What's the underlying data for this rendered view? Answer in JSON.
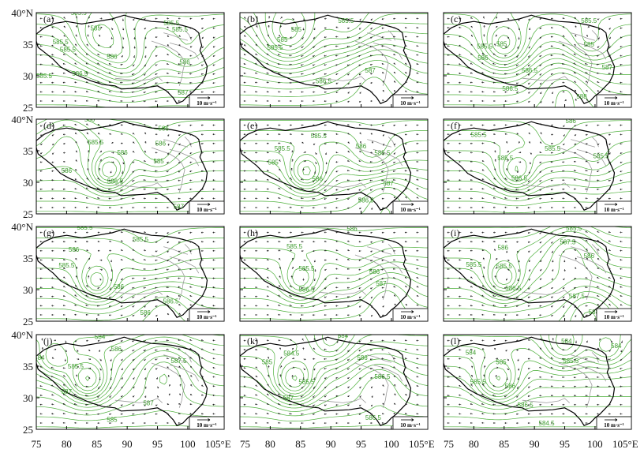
{
  "chart_data": {
    "type": "contour-vector-panel-grid",
    "rows": 4,
    "cols": 3,
    "x_ticks": [
      "75",
      "80",
      "85",
      "90",
      "95",
      "100",
      "105°E"
    ],
    "y_ticks": [
      "40°N",
      "35",
      "30",
      "25"
    ],
    "x_values": [
      75,
      80,
      85,
      90,
      95,
      100,
      105
    ],
    "y_values": [
      40,
      35,
      30,
      25
    ],
    "xlim": [
      75,
      106
    ],
    "ylim": [
      25,
      40
    ],
    "reference_vector": "10 m·s⁻¹",
    "colors": {
      "contour": "#4caf3a",
      "contour_label": "#3a9a2a",
      "plateau_border": "#000000",
      "river": "#9a9a9a",
      "vector": "#222222"
    },
    "panels": [
      {
        "label": "(a)",
        "contour_labels": [
          {
            "text": "585.5",
            "lon": 82.0,
            "lat": 39.6
          },
          {
            "text": "585",
            "lon": 84.8,
            "lat": 37.2
          },
          {
            "text": "585.5",
            "lon": 97.3,
            "lat": 38.0
          },
          {
            "text": "585.5",
            "lon": 98.7,
            "lat": 37.0
          },
          {
            "text": "585.5",
            "lon": 79.0,
            "lat": 35.0
          },
          {
            "text": "585.5",
            "lon": 80.2,
            "lat": 33.8
          },
          {
            "text": "586",
            "lon": 87.5,
            "lat": 32.7
          },
          {
            "text": "586",
            "lon": 99.5,
            "lat": 31.8
          },
          {
            "text": "586.5",
            "lon": 82.2,
            "lat": 30.0
          },
          {
            "text": "585.5",
            "lon": 76.3,
            "lat": 29.6
          },
          {
            "text": "587",
            "lon": 99.2,
            "lat": 27.0
          }
        ]
      },
      {
        "label": "(b)",
        "contour_labels": [
          {
            "text": "585.5",
            "lon": 92.5,
            "lat": 38.4
          },
          {
            "text": "585",
            "lon": 84.3,
            "lat": 37.0
          },
          {
            "text": "585.5",
            "lon": 80.8,
            "lat": 34.1
          },
          {
            "text": "585",
            "lon": 82.0,
            "lat": 35.4
          },
          {
            "text": "586.5",
            "lon": 88.8,
            "lat": 28.8
          },
          {
            "text": "587",
            "lon": 96.5,
            "lat": 30.5
          }
        ]
      },
      {
        "label": "(c)",
        "contour_labels": [
          {
            "text": "585.5",
            "lon": 99.0,
            "lat": 38.4
          },
          {
            "text": "585.5",
            "lon": 81.8,
            "lat": 34.3
          },
          {
            "text": "585",
            "lon": 84.6,
            "lat": 34.7
          },
          {
            "text": "586",
            "lon": 81.5,
            "lat": 32.5
          },
          {
            "text": "585",
            "lon": 99.0,
            "lat": 34.6
          },
          {
            "text": "586.5",
            "lon": 89.2,
            "lat": 30.5
          },
          {
            "text": "587",
            "lon": 102.0,
            "lat": 31.0
          },
          {
            "text": "586.5",
            "lon": 86.0,
            "lat": 27.6
          },
          {
            "text": "588",
            "lon": 97.8,
            "lat": 26.4
          }
        ]
      },
      {
        "label": "(d)",
        "contour_labels": [
          {
            "text": "586",
            "lon": 83.8,
            "lat": 39.6
          },
          {
            "text": "586",
            "lon": 96.0,
            "lat": 38.2
          },
          {
            "text": "585.5",
            "lon": 84.8,
            "lat": 36.0
          },
          {
            "text": "586",
            "lon": 95.5,
            "lat": 35.8
          },
          {
            "text": "586",
            "lon": 89.2,
            "lat": 34.4
          },
          {
            "text": "585",
            "lon": 95.2,
            "lat": 33.0
          },
          {
            "text": "586",
            "lon": 80.0,
            "lat": 31.5
          },
          {
            "text": "586.5",
            "lon": 88.0,
            "lat": 29.8
          },
          {
            "text": "587",
            "lon": 98.5,
            "lat": 25.8
          }
        ]
      },
      {
        "label": "(e)",
        "contour_labels": [
          {
            "text": "585.5",
            "lon": 88.0,
            "lat": 37.0
          },
          {
            "text": "585.5",
            "lon": 82.0,
            "lat": 35.0
          },
          {
            "text": "586",
            "lon": 95.0,
            "lat": 35.4
          },
          {
            "text": "585.5",
            "lon": 98.5,
            "lat": 34.3
          },
          {
            "text": "585",
            "lon": 80.5,
            "lat": 32.8
          },
          {
            "text": "586",
            "lon": 87.8,
            "lat": 30.2
          },
          {
            "text": "587",
            "lon": 99.5,
            "lat": 29.5
          },
          {
            "text": "586.5",
            "lon": 95.8,
            "lat": 26.8
          }
        ]
      },
      {
        "label": "(f)",
        "contour_labels": [
          {
            "text": "586",
            "lon": 96.0,
            "lat": 39.4
          },
          {
            "text": "585.5",
            "lon": 80.8,
            "lat": 37.2
          },
          {
            "text": "585.5",
            "lon": 93.0,
            "lat": 35.0
          },
          {
            "text": "585.5",
            "lon": 101.0,
            "lat": 33.8
          },
          {
            "text": "585.5",
            "lon": 85.2,
            "lat": 33.5
          },
          {
            "text": "586.5",
            "lon": 87.5,
            "lat": 30.3
          }
        ]
      },
      {
        "label": "(g)",
        "contour_labels": [
          {
            "text": "585.5",
            "lon": 83.0,
            "lat": 39.5
          },
          {
            "text": "585.5",
            "lon": 92.2,
            "lat": 37.6
          },
          {
            "text": "586",
            "lon": 81.2,
            "lat": 36.0
          },
          {
            "text": "585.5",
            "lon": 80.0,
            "lat": 33.5
          },
          {
            "text": "586",
            "lon": 88.6,
            "lat": 30.1
          },
          {
            "text": "586.5",
            "lon": 97.2,
            "lat": 27.8
          },
          {
            "text": "586",
            "lon": 93.0,
            "lat": 26.0
          }
        ]
      },
      {
        "label": "(h)",
        "contour_labels": [
          {
            "text": "586",
            "lon": 93.5,
            "lat": 39.3
          },
          {
            "text": "585.5",
            "lon": 84.0,
            "lat": 36.5
          },
          {
            "text": "585.5",
            "lon": 86.0,
            "lat": 33.0
          },
          {
            "text": "586",
            "lon": 97.2,
            "lat": 32.5
          },
          {
            "text": "586.5",
            "lon": 86.0,
            "lat": 29.7
          },
          {
            "text": "587",
            "lon": 98.3,
            "lat": 30.6
          }
        ]
      },
      {
        "label": "(i)",
        "contour_labels": [
          {
            "text": "585.5",
            "lon": 96.5,
            "lat": 39.4
          },
          {
            "text": "587.5",
            "lon": 95.5,
            "lat": 37.2
          },
          {
            "text": "586",
            "lon": 84.8,
            "lat": 36.3
          },
          {
            "text": "585.5",
            "lon": 85.0,
            "lat": 33.4
          },
          {
            "text": "586",
            "lon": 99.0,
            "lat": 35.0
          },
          {
            "text": "585.5",
            "lon": 80.0,
            "lat": 33.6
          },
          {
            "text": "586.5",
            "lon": 86.5,
            "lat": 29.9
          },
          {
            "text": "587.5",
            "lon": 97.0,
            "lat": 28.6
          },
          {
            "text": "588",
            "lon": 99.8,
            "lat": 26.1
          }
        ]
      },
      {
        "label": "(j)",
        "contour_labels": [
          {
            "text": "584",
            "lon": 85.5,
            "lat": 39.3
          },
          {
            "text": "586",
            "lon": 88.2,
            "lat": 37.4
          },
          {
            "text": "584",
            "lon": 75.5,
            "lat": 36.0
          },
          {
            "text": "585.5",
            "lon": 81.5,
            "lat": 34.6
          },
          {
            "text": "587.5",
            "lon": 98.5,
            "lat": 35.5
          },
          {
            "text": "587",
            "lon": 80.0,
            "lat": 30.6
          },
          {
            "text": "587",
            "lon": 93.5,
            "lat": 28.8
          },
          {
            "text": "585",
            "lon": 87.5,
            "lat": 26.2
          }
        ]
      },
      {
        "label": "(k)",
        "contour_labels": [
          {
            "text": "584",
            "lon": 92.0,
            "lat": 39.5
          },
          {
            "text": "584.5",
            "lon": 83.5,
            "lat": 36.7
          },
          {
            "text": "585",
            "lon": 79.5,
            "lat": 35.3
          },
          {
            "text": "586",
            "lon": 95.2,
            "lat": 36.0
          },
          {
            "text": "585.5",
            "lon": 86.0,
            "lat": 32.2
          },
          {
            "text": "586.5",
            "lon": 98.5,
            "lat": 33.0
          },
          {
            "text": "587",
            "lon": 83.0,
            "lat": 29.6
          },
          {
            "text": "586.5",
            "lon": 97.0,
            "lat": 26.5
          }
        ]
      },
      {
        "label": "(l)",
        "contour_labels": [
          {
            "text": "584",
            "lon": 95.3,
            "lat": 38.6
          },
          {
            "text": "584",
            "lon": 103.5,
            "lat": 37.9
          },
          {
            "text": "584",
            "lon": 79.5,
            "lat": 36.8
          },
          {
            "text": "585",
            "lon": 84.5,
            "lat": 35.3
          },
          {
            "text": "585.5",
            "lon": 96.0,
            "lat": 35.5
          },
          {
            "text": "585.5",
            "lon": 80.7,
            "lat": 32.2
          },
          {
            "text": "586",
            "lon": 86.0,
            "lat": 31.5
          },
          {
            "text": "586.5",
            "lon": 88.5,
            "lat": 28.5
          },
          {
            "text": "584.5",
            "lon": 92.0,
            "lat": 25.6
          }
        ]
      }
    ]
  }
}
